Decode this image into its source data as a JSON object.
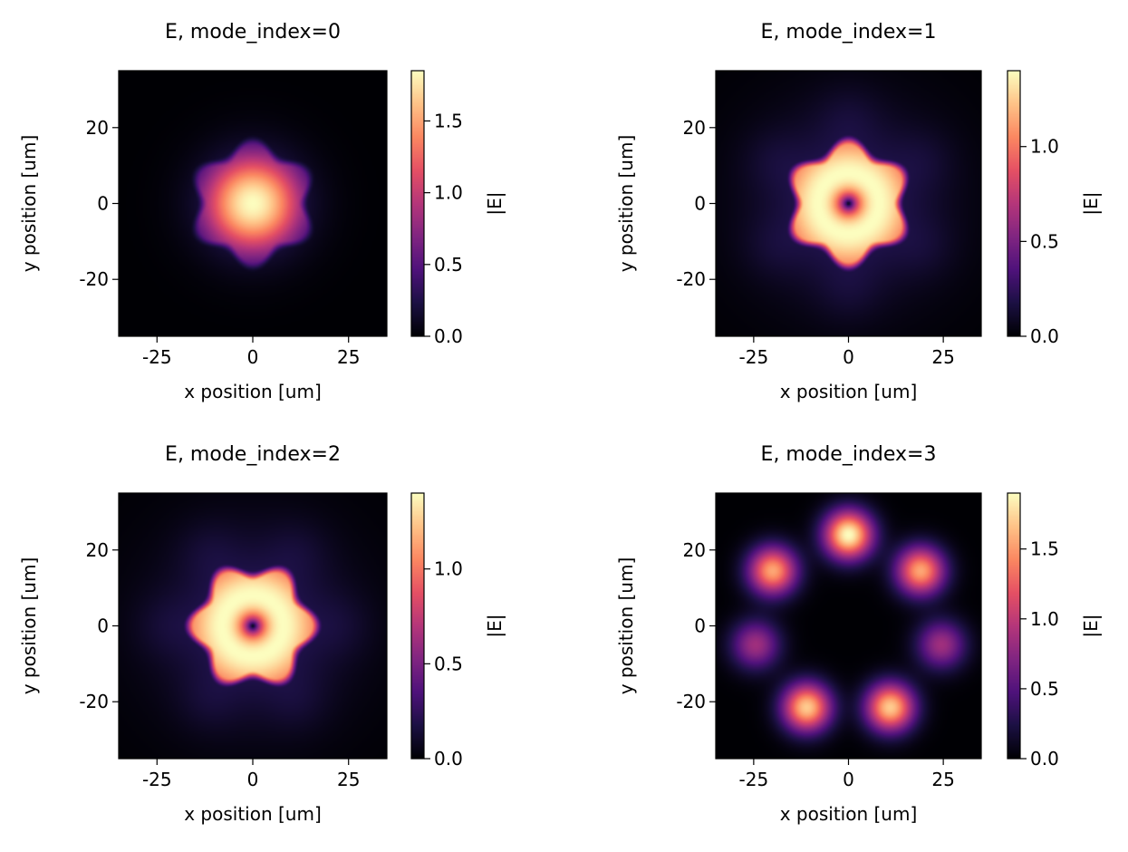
{
  "figure": {
    "background": "#ffffff"
  },
  "colormap": {
    "name": "magma",
    "stops": [
      "#000004",
      "#1c1044",
      "#4f127b",
      "#812581",
      "#b5367a",
      "#e55064",
      "#fb8761",
      "#fec287",
      "#fcfdbf"
    ]
  },
  "chart_data": [
    {
      "type": "heatmap",
      "title": "E, mode_index=0",
      "xlabel": "x position [um]",
      "ylabel": "y position [um]",
      "xlim": [
        -35,
        35
      ],
      "ylim": [
        -35,
        35
      ],
      "xticks": [
        -25,
        0,
        25
      ],
      "yticks": [
        -20,
        0,
        20
      ],
      "colorbar": {
        "label": "|E|",
        "min": 0,
        "max": 1.85,
        "ticks": [
          "0.0",
          "0.5",
          "1.0",
          "1.5"
        ],
        "tick_values": [
          0,
          0.5,
          1.0,
          1.5
        ]
      },
      "field": {
        "pattern": "fundamental",
        "peak": 1.85,
        "core_radius_um": 15,
        "star_points": 6,
        "star_phase_deg": 30
      }
    },
    {
      "type": "heatmap",
      "title": "E, mode_index=1",
      "xlabel": "x position [um]",
      "ylabel": "y position [um]",
      "xlim": [
        -35,
        35
      ],
      "ylim": [
        -35,
        35
      ],
      "xticks": [
        -25,
        0,
        25
      ],
      "yticks": [
        -20,
        0,
        20
      ],
      "colorbar": {
        "label": "|E|",
        "min": 0,
        "max": 1.4,
        "ticks": [
          "0.0",
          "0.5",
          "1.0"
        ],
        "tick_values": [
          0,
          0.5,
          1.0
        ]
      },
      "field": {
        "pattern": "ring",
        "peak": 1.4,
        "ring_radius_um": 8,
        "core_radius_um": 15,
        "star_points": 6,
        "star_phase_deg": 30,
        "satellite_radius_um": 23,
        "satellite_phase_deg": 30
      }
    },
    {
      "type": "heatmap",
      "title": "E, mode_index=2",
      "xlabel": "x position [um]",
      "ylabel": "y position [um]",
      "xlim": [
        -35,
        35
      ],
      "ylim": [
        -35,
        35
      ],
      "xticks": [
        -25,
        0,
        25
      ],
      "yticks": [
        -20,
        0,
        20
      ],
      "colorbar": {
        "label": "|E|",
        "min": 0,
        "max": 1.4,
        "ticks": [
          "0.0",
          "0.5",
          "1.0"
        ],
        "tick_values": [
          0,
          0.5,
          1.0
        ]
      },
      "field": {
        "pattern": "ring",
        "peak": 1.4,
        "ring_radius_um": 8,
        "core_radius_um": 15,
        "star_points": 6,
        "star_phase_deg": 0,
        "satellite_radius_um": 23,
        "satellite_phase_deg": 0
      }
    },
    {
      "type": "heatmap",
      "title": "E, mode_index=3",
      "xlabel": "x position [um]",
      "ylabel": "y position [um]",
      "xlim": [
        -35,
        35
      ],
      "ylim": [
        -35,
        35
      ],
      "xticks": [
        -25,
        0,
        25
      ],
      "yticks": [
        -20,
        0,
        20
      ],
      "colorbar": {
        "label": "|E|",
        "min": 0,
        "max": 1.9,
        "ticks": [
          "0.0",
          "0.5",
          "1.0",
          "1.5"
        ],
        "tick_values": [
          0,
          0.5,
          1.0,
          1.5
        ]
      },
      "field": {
        "pattern": "spots",
        "spot_sigma_um": 4.5,
        "spots": [
          {
            "x": 0,
            "y": 24,
            "amp": 1.9
          },
          {
            "x": -20,
            "y": 14.5,
            "amp": 1.55
          },
          {
            "x": 19,
            "y": 14.5,
            "amp": 1.55
          },
          {
            "x": -24.5,
            "y": -5,
            "amp": 0.85
          },
          {
            "x": 24.5,
            "y": -5,
            "amp": 0.85
          },
          {
            "x": -11,
            "y": -21.5,
            "amp": 1.7
          },
          {
            "x": 11,
            "y": -21.5,
            "amp": 1.7
          }
        ]
      }
    }
  ]
}
